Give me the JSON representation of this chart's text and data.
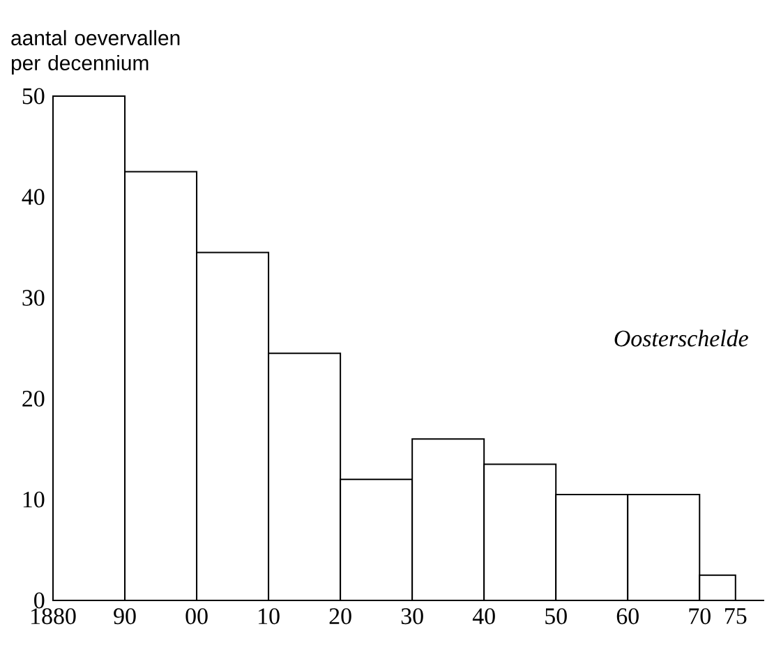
{
  "chart_data": {
    "type": "histogram",
    "ylabel": "aantal oevervallen per decennium",
    "bins": [
      1880,
      1890,
      1900,
      1910,
      1920,
      1930,
      1940,
      1950,
      1960,
      1970,
      1975
    ],
    "values": [
      50,
      42.5,
      34.5,
      24.5,
      12,
      16,
      13.5,
      10.5,
      10.5,
      2.5
    ],
    "color": "#ffffff",
    "xlim": [
      1880,
      1979
    ],
    "ylim": [
      0,
      50
    ],
    "xticks": [
      1880,
      {
        "value": 1890,
        "label": "90"
      },
      {
        "value": 1900,
        "label": "00"
      },
      {
        "value": 1910,
        "label": "10"
      },
      {
        "value": 1920,
        "label": "20"
      },
      {
        "value": 1930,
        "label": "30"
      },
      {
        "value": 1940,
        "label": "40"
      },
      {
        "value": 1950,
        "label": "50"
      },
      {
        "value": 1960,
        "label": "60"
      },
      {
        "value": 1970,
        "label": "70"
      },
      {
        "value": 1975,
        "label": "75"
      }
    ],
    "yticks": [
      0,
      10,
      20,
      30,
      40,
      50
    ],
    "annotations": [
      "*Oosterschelde*"
    ],
    "grid": false
  }
}
